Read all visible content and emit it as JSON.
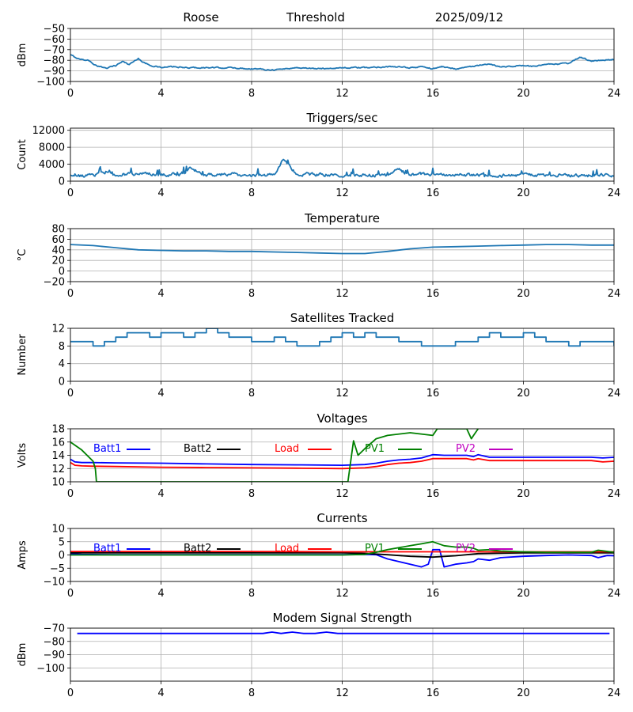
{
  "header": {
    "station": "Roose",
    "threshold_label": "Threshold",
    "date": "2025/09/12"
  },
  "chart_data": [
    {
      "id": "signal",
      "type": "line",
      "title": "",
      "ylabel": "dBm",
      "xlim": [
        0,
        24
      ],
      "ylim": [
        -100,
        -50
      ],
      "yticks": [
        -50,
        -60,
        -70,
        -80,
        -90,
        -100
      ],
      "xticks": [
        0,
        4,
        8,
        12,
        16,
        20,
        24
      ],
      "grid": true,
      "series": [
        {
          "color": "#1f77b4",
          "style": "noisy",
          "x": [
            0,
            0.4,
            0.8,
            1.2,
            1.6,
            2.0,
            2.3,
            2.6,
            3.0,
            3.2,
            3.6,
            4.0,
            4.5,
            5.0,
            6.0,
            7.0,
            8.0,
            9.0,
            9.5,
            10.0,
            11.0,
            12.0,
            13.0,
            14.0,
            15.0,
            15.5,
            16.0,
            16.4,
            17.0,
            18.0,
            18.5,
            19.0,
            20.0,
            20.5,
            21.0,
            22.0,
            22.5,
            23.0,
            23.5,
            24.0
          ],
          "y": [
            -75,
            -79,
            -80,
            -86,
            -87,
            -85,
            -81,
            -84,
            -78,
            -82,
            -85,
            -87,
            -86,
            -87,
            -87,
            -87,
            -88,
            -89,
            -88,
            -87,
            -88,
            -87,
            -87,
            -86,
            -87,
            -86,
            -88,
            -86,
            -88,
            -85,
            -84,
            -86,
            -85,
            -86,
            -84,
            -83,
            -77,
            -81,
            -80,
            -79
          ]
        }
      ]
    },
    {
      "id": "triggers",
      "type": "line",
      "title": "Triggers/sec",
      "ylabel": "Count",
      "xlim": [
        0,
        24
      ],
      "ylim": [
        0,
        12500
      ],
      "yticks": [
        0,
        4000,
        8000,
        12000
      ],
      "xticks": [
        0,
        4,
        8,
        12,
        16,
        20,
        24
      ],
      "grid": true,
      "series": [
        {
          "color": "#1f77b4",
          "style": "noisy",
          "x": [
            0,
            1,
            1.7,
            2,
            3,
            4,
            5,
            5.3,
            6,
            7,
            8,
            9,
            9.4,
            10,
            11,
            12,
            13,
            14,
            14.5,
            15,
            16,
            17,
            18,
            19,
            20,
            21,
            22,
            23,
            24
          ],
          "y": [
            1200,
            1300,
            2500,
            1500,
            1800,
            1500,
            1700,
            3000,
            1500,
            1600,
            1400,
            1500,
            5500,
            1500,
            1600,
            1500,
            1400,
            1300,
            2800,
            1500,
            1700,
            1400,
            1500,
            1300,
            1400,
            1500,
            1400,
            1300,
            1400
          ]
        }
      ]
    },
    {
      "id": "temperature",
      "type": "line",
      "title": "Temperature",
      "ylabel": "°C",
      "xlim": [
        0,
        24
      ],
      "ylim": [
        -20,
        80
      ],
      "yticks": [
        -20,
        0,
        20,
        40,
        60,
        80
      ],
      "xticks": [
        0,
        4,
        8,
        12,
        16,
        20,
        24
      ],
      "grid": true,
      "series": [
        {
          "color": "#1f77b4",
          "style": "smooth",
          "x": [
            0,
            1,
            2,
            3,
            4,
            5,
            6,
            7,
            8,
            9,
            10,
            11,
            12,
            13,
            14,
            15,
            16,
            17,
            18,
            19,
            20,
            21,
            22,
            23,
            24
          ],
          "y": [
            50,
            48,
            44,
            40,
            39,
            38,
            38,
            37,
            37,
            36,
            35,
            34,
            33,
            33,
            37,
            42,
            45,
            46,
            47,
            48,
            49,
            50,
            50,
            49,
            49
          ]
        }
      ]
    },
    {
      "id": "satellites",
      "type": "line",
      "title": "Satellites Tracked",
      "ylabel": "Number",
      "xlim": [
        0,
        24
      ],
      "ylim": [
        0,
        12
      ],
      "yticks": [
        0,
        4,
        8,
        12
      ],
      "xticks": [
        0,
        4,
        8,
        12,
        16,
        20,
        24
      ],
      "grid": true,
      "series": [
        {
          "color": "#1f77b4",
          "style": "step",
          "x": [
            0,
            0.5,
            1.0,
            1.5,
            2.0,
            2.5,
            3.0,
            3.5,
            4.0,
            4.5,
            5.0,
            5.5,
            6.0,
            6.5,
            7.0,
            7.5,
            8.0,
            8.5,
            9.0,
            9.5,
            10.0,
            10.5,
            11.0,
            11.5,
            12.0,
            12.5,
            13.0,
            13.5,
            14.0,
            14.5,
            15.0,
            15.5,
            16.0,
            16.5,
            17.0,
            17.5,
            18.0,
            18.5,
            19.0,
            19.5,
            20.0,
            20.5,
            21.0,
            21.5,
            22.0,
            22.5,
            23.0,
            23.5,
            24.0
          ],
          "y": [
            9,
            9,
            8,
            9,
            10,
            11,
            11,
            10,
            11,
            11,
            10,
            11,
            12,
            11,
            10,
            10,
            9,
            9,
            10,
            9,
            8,
            8,
            9,
            10,
            11,
            10,
            11,
            10,
            10,
            9,
            9,
            8,
            8,
            8,
            9,
            9,
            10,
            11,
            10,
            10,
            11,
            10,
            9,
            9,
            8,
            9,
            9,
            9,
            8
          ]
        }
      ]
    },
    {
      "id": "voltages",
      "type": "line",
      "title": "Voltages",
      "ylabel": "Volts",
      "xlim": [
        0,
        24
      ],
      "ylim": [
        10,
        18
      ],
      "yticks": [
        10,
        12,
        14,
        16,
        18
      ],
      "xticks": [
        0,
        4,
        8,
        12,
        16,
        20,
        24
      ],
      "grid": true,
      "legend": "top",
      "series": [
        {
          "name": "Batt1",
          "color": "#0000ff",
          "style": "smooth",
          "x": [
            0,
            0.2,
            0.5,
            1,
            2,
            4,
            6,
            8,
            10,
            12,
            13,
            13.5,
            14,
            14.5,
            15,
            15.5,
            16,
            16.5,
            17,
            17.5,
            17.8,
            18,
            18.5,
            19,
            20,
            21,
            22,
            23,
            23.5,
            24
          ],
          "y": [
            13.4,
            13,
            12.9,
            12.9,
            12.85,
            12.8,
            12.7,
            12.6,
            12.55,
            12.5,
            12.6,
            12.8,
            13.1,
            13.3,
            13.4,
            13.6,
            14.1,
            14.0,
            14.0,
            14.0,
            13.8,
            14.1,
            13.7,
            13.7,
            13.7,
            13.7,
            13.7,
            13.7,
            13.6,
            13.7
          ]
        },
        {
          "name": "Batt2",
          "color": "#000000",
          "style": "smooth",
          "x": [],
          "y": []
        },
        {
          "name": "Load",
          "color": "#ff0000",
          "style": "smooth",
          "x": [
            0,
            0.2,
            0.5,
            1,
            2,
            4,
            6,
            8,
            10,
            12,
            13,
            13.5,
            14,
            14.5,
            15,
            15.5,
            16,
            16.5,
            17,
            17.5,
            17.8,
            18,
            18.5,
            19,
            20,
            21,
            22,
            23,
            23.5,
            24
          ],
          "y": [
            12.9,
            12.5,
            12.4,
            12.35,
            12.3,
            12.2,
            12.15,
            12.1,
            12.05,
            12.0,
            12.1,
            12.3,
            12.6,
            12.8,
            12.9,
            13.1,
            13.5,
            13.5,
            13.5,
            13.5,
            13.3,
            13.5,
            13.2,
            13.2,
            13.2,
            13.2,
            13.2,
            13.2,
            13.0,
            13.1
          ]
        },
        {
          "name": "PV1",
          "color": "#008000",
          "style": "smooth",
          "x": [
            0,
            0.5,
            1.0,
            1.1,
            1.15,
            12.25,
            12.5,
            12.7,
            13.0,
            13.5,
            14.0,
            15.0,
            16.0,
            16.2,
            17.5,
            17.7,
            17.8,
            18.0
          ],
          "y": [
            16.0,
            14.8,
            13.1,
            12.0,
            10.0,
            10.0,
            16.2,
            14.0,
            15.0,
            16.5,
            17.0,
            17.4,
            17.0,
            18.0,
            18.0,
            16.5,
            17.0,
            18.0
          ]
        },
        {
          "name": "PV2",
          "color": "#bf00bf",
          "style": "smooth",
          "x": [],
          "y": []
        }
      ]
    },
    {
      "id": "currents",
      "type": "line",
      "title": "Currents",
      "ylabel": "Amps",
      "xlim": [
        0,
        24
      ],
      "ylim": [
        -10,
        10
      ],
      "yticks": [
        -10,
        -5,
        0,
        5,
        10
      ],
      "xticks": [
        0,
        4,
        8,
        12,
        16,
        20,
        24
      ],
      "grid": true,
      "legend": "top",
      "series": [
        {
          "name": "Batt1",
          "color": "#0000ff",
          "style": "smooth",
          "x": [
            0,
            0.5,
            2,
            4,
            6,
            8,
            10,
            12,
            13,
            13.5,
            14,
            14.5,
            15,
            15.5,
            15.8,
            16.0,
            16.3,
            16.5,
            17,
            17.5,
            17.8,
            18,
            18.5,
            19,
            20,
            21,
            22,
            23,
            23.3,
            23.7,
            24
          ],
          "y": [
            0.5,
            0.2,
            0.1,
            0.1,
            0.1,
            0.1,
            0.1,
            0.1,
            0.2,
            0.1,
            -1.5,
            -2.5,
            -3.5,
            -4.5,
            -3.5,
            2.0,
            2.0,
            -4.5,
            -3.5,
            -3.0,
            -2.5,
            -1.5,
            -2.0,
            -1.0,
            -0.5,
            -0.2,
            0.0,
            -0.2,
            -1.0,
            -0.2,
            -0.3
          ]
        },
        {
          "name": "Batt2",
          "color": "#000000",
          "style": "smooth",
          "x": [
            0,
            4,
            8,
            12,
            13,
            14,
            15,
            16,
            17,
            18,
            20,
            24
          ],
          "y": [
            0.8,
            0.8,
            0.8,
            0.8,
            0.6,
            0.1,
            -0.5,
            -0.8,
            -0.3,
            0.5,
            0.8,
            0.8
          ]
        },
        {
          "name": "Load",
          "color": "#ff0000",
          "style": "smooth",
          "x": [
            0,
            4,
            8,
            12,
            16,
            20,
            24
          ],
          "y": [
            1.3,
            1.3,
            1.3,
            1.2,
            1.2,
            1.2,
            1.2
          ]
        },
        {
          "name": "PV1",
          "color": "#008000",
          "style": "smooth",
          "x": [
            0,
            12,
            13,
            13.5,
            14,
            15,
            15.5,
            16.0,
            16.5,
            17,
            17.5,
            17.8,
            18,
            18.5,
            19,
            20,
            21,
            22,
            23,
            23.3,
            24
          ],
          "y": [
            0,
            0,
            0.2,
            1.0,
            2.0,
            3.5,
            4.2,
            5.0,
            3.5,
            3.0,
            3.0,
            2.5,
            1.8,
            2.0,
            1.5,
            1.2,
            1.0,
            1.0,
            1.0,
            1.8,
            1.0
          ]
        },
        {
          "name": "PV2",
          "color": "#bf00bf",
          "style": "smooth",
          "x": [],
          "y": []
        }
      ]
    },
    {
      "id": "modem",
      "type": "line",
      "title": "Modem Signal Strength",
      "ylabel": "dBm",
      "xlim": [
        0,
        24
      ],
      "ylim": [
        -110,
        -70
      ],
      "yticks": [
        -70,
        -80,
        -90,
        -100
      ],
      "xticks": [
        0,
        4,
        8,
        12,
        16,
        20,
        24
      ],
      "grid": true,
      "series": [
        {
          "color": "#0000ff",
          "style": "smooth",
          "x": [
            0.3,
            2,
            4,
            6,
            8,
            8.5,
            8.9,
            9.3,
            9.8,
            10.3,
            10.8,
            11.3,
            11.8,
            12,
            14,
            16,
            18,
            20,
            22,
            23.8
          ],
          "y": [
            -74,
            -74,
            -74,
            -74,
            -74,
            -74,
            -73,
            -74,
            -73,
            -74,
            -74,
            -73,
            -74,
            -74,
            -74,
            -74,
            -74,
            -74,
            -74,
            -74
          ]
        }
      ]
    }
  ]
}
